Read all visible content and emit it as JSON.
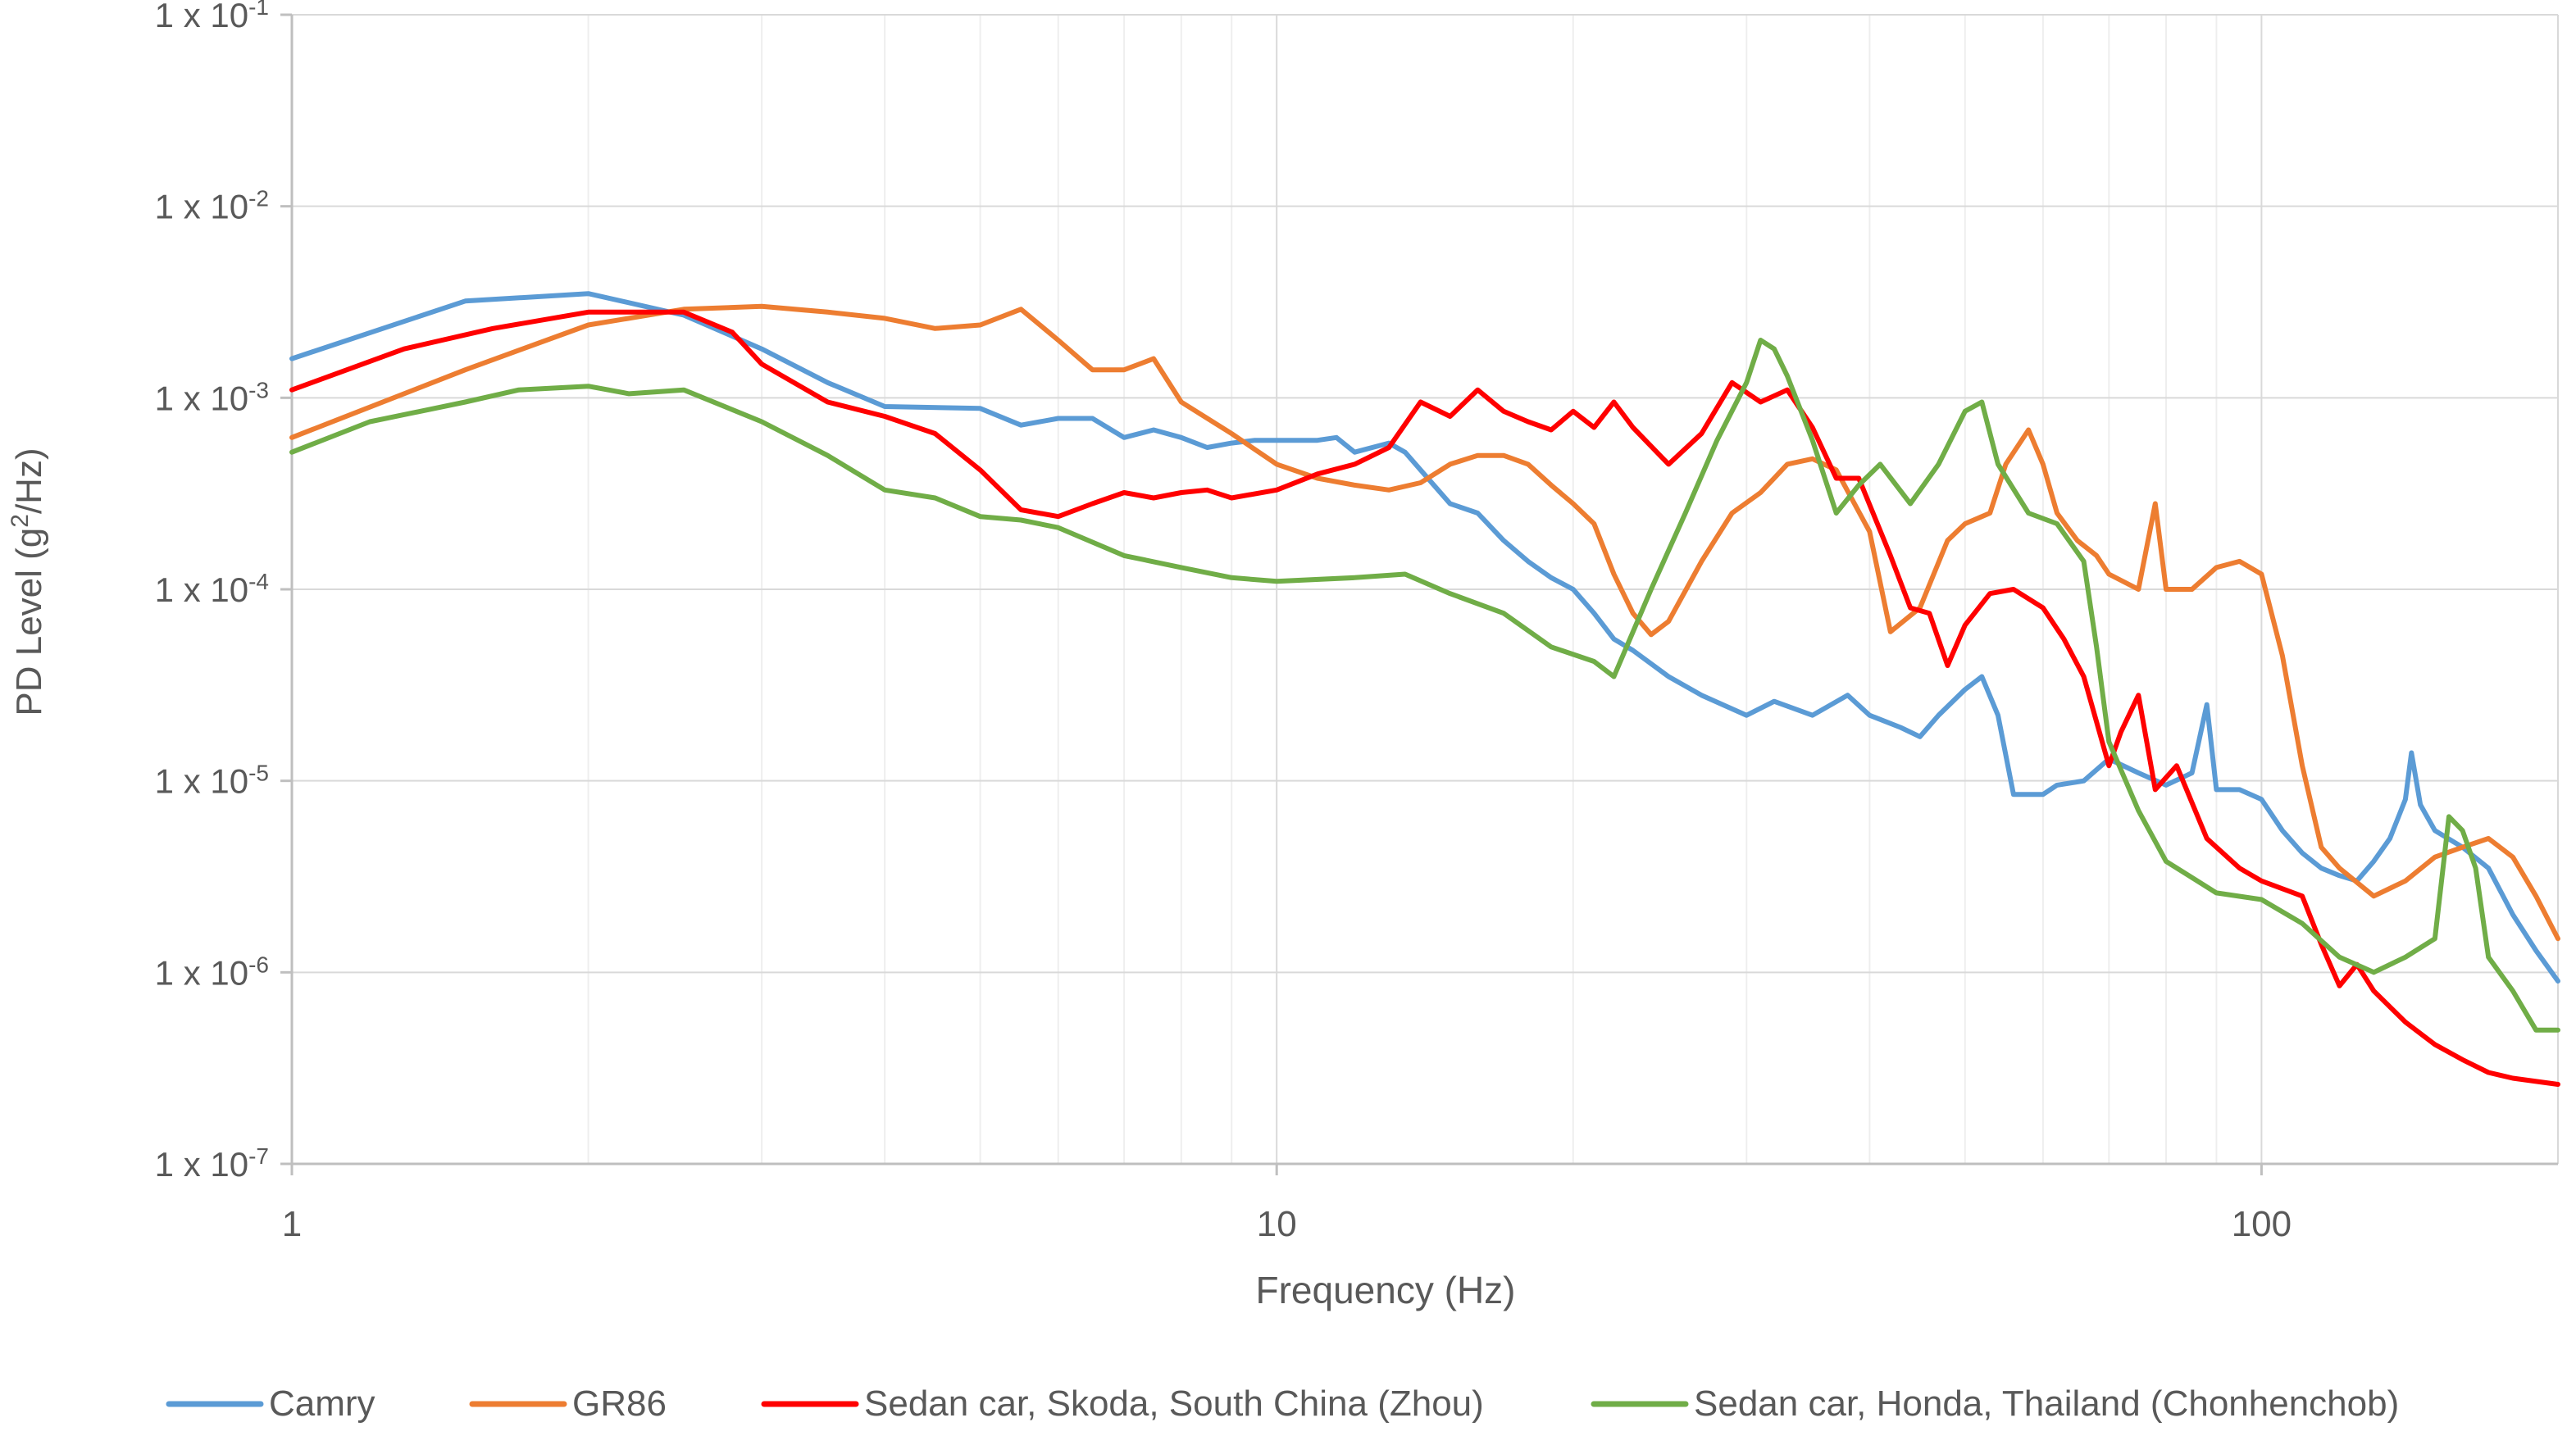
{
  "chart_data": {
    "type": "line",
    "title": "",
    "xlabel": "Frequency (Hz)",
    "ylabel": "PD Level (g²/Hz)",
    "ylabel_parts": {
      "pre": "PD Level (g",
      "sup": "2",
      "post": "/Hz)"
    },
    "x_scale": "log",
    "y_scale": "log",
    "xlim": [
      1,
      200
    ],
    "ylim": [
      1e-07,
      0.1
    ],
    "grid": "major and minor (log)",
    "legend_position": "bottom",
    "x_ticks": [
      {
        "value": 1,
        "label": "1"
      },
      {
        "value": 10,
        "label": "10"
      },
      {
        "value": 100,
        "label": "100"
      }
    ],
    "y_ticks": [
      {
        "value": 0.1,
        "base": "1 x 10",
        "exp": "-1"
      },
      {
        "value": 0.01,
        "base": "1 x 10",
        "exp": "-2"
      },
      {
        "value": 0.001,
        "base": "1 x 10",
        "exp": "-3"
      },
      {
        "value": 0.0001,
        "base": "1 x 10",
        "exp": "-4"
      },
      {
        "value": 1e-05,
        "base": "1 x 10",
        "exp": "-5"
      },
      {
        "value": 1e-06,
        "base": "1 x 10",
        "exp": "-6"
      },
      {
        "value": 1e-07,
        "base": "1 x 10",
        "exp": "-7"
      }
    ],
    "series": [
      {
        "name": "Camry",
        "color": "#5B9BD5",
        "points": [
          [
            1,
            0.0016
          ],
          [
            1.5,
            0.0032
          ],
          [
            2,
            0.0035
          ],
          [
            2.5,
            0.0027
          ],
          [
            3,
            0.0018
          ],
          [
            3.5,
            0.0012
          ],
          [
            4,
            0.0009
          ],
          [
            5,
            0.00088
          ],
          [
            5.5,
            0.00072
          ],
          [
            6,
            0.00078
          ],
          [
            6.5,
            0.00078
          ],
          [
            7,
            0.00062
          ],
          [
            7.5,
            0.00068
          ],
          [
            8,
            0.00062
          ],
          [
            8.5,
            0.00055
          ],
          [
            9,
            0.00058
          ],
          [
            9.5,
            0.0006
          ],
          [
            10,
            0.0006
          ],
          [
            11,
            0.0006
          ],
          [
            11.5,
            0.00062
          ],
          [
            12,
            0.00052
          ],
          [
            13,
            0.00058
          ],
          [
            13.5,
            0.00052
          ],
          [
            14,
            0.00042
          ],
          [
            15,
            0.00028
          ],
          [
            16,
            0.00025
          ],
          [
            17,
            0.00018
          ],
          [
            18,
            0.00014
          ],
          [
            19,
            0.000115
          ],
          [
            20,
            0.0001
          ],
          [
            21,
            7.5e-05
          ],
          [
            22,
            5.5e-05
          ],
          [
            23,
            4.8e-05
          ],
          [
            25,
            3.5e-05
          ],
          [
            27,
            2.8e-05
          ],
          [
            30,
            2.2e-05
          ],
          [
            32,
            2.6e-05
          ],
          [
            35,
            2.2e-05
          ],
          [
            38,
            2.8e-05
          ],
          [
            40,
            2.2e-05
          ],
          [
            43,
            1.9e-05
          ],
          [
            45,
            1.7e-05
          ],
          [
            47,
            2.2e-05
          ],
          [
            50,
            3e-05
          ],
          [
            52,
            3.5e-05
          ],
          [
            54,
            2.2e-05
          ],
          [
            56,
            8.5e-06
          ],
          [
            60,
            8.5e-06
          ],
          [
            62,
            9.5e-06
          ],
          [
            66,
            1e-05
          ],
          [
            70,
            1.3e-05
          ],
          [
            75,
            1.1e-05
          ],
          [
            80,
            9.5e-06
          ],
          [
            85,
            1.1e-05
          ],
          [
            88,
            2.5e-05
          ],
          [
            90,
            9e-06
          ],
          [
            95,
            9e-06
          ],
          [
            100,
            8e-06
          ],
          [
            105,
            5.5e-06
          ],
          [
            110,
            4.2e-06
          ],
          [
            115,
            3.5e-06
          ],
          [
            120,
            3.2e-06
          ],
          [
            125,
            3e-06
          ],
          [
            130,
            3.8e-06
          ],
          [
            135,
            5e-06
          ],
          [
            140,
            8e-06
          ],
          [
            142,
            1.4e-05
          ],
          [
            145,
            7.5e-06
          ],
          [
            150,
            5.5e-06
          ],
          [
            160,
            4.5e-06
          ],
          [
            170,
            3.5e-06
          ],
          [
            180,
            2e-06
          ],
          [
            190,
            1.3e-06
          ],
          [
            200,
            9e-07
          ]
        ]
      },
      {
        "name": "GR86",
        "color": "#ED7D31",
        "points": [
          [
            1,
            0.00062
          ],
          [
            1.5,
            0.0014
          ],
          [
            2,
            0.0024
          ],
          [
            2.5,
            0.0029
          ],
          [
            3,
            0.003
          ],
          [
            3.5,
            0.0028
          ],
          [
            4,
            0.0026
          ],
          [
            4.5,
            0.0023
          ],
          [
            5,
            0.0024
          ],
          [
            5.5,
            0.0029
          ],
          [
            6,
            0.002
          ],
          [
            6.5,
            0.0014
          ],
          [
            7,
            0.0014
          ],
          [
            7.5,
            0.0016
          ],
          [
            8,
            0.00095
          ],
          [
            9,
            0.00065
          ],
          [
            10,
            0.00045
          ],
          [
            11,
            0.00038
          ],
          [
            12,
            0.00035
          ],
          [
            13,
            0.00033
          ],
          [
            14,
            0.00036
          ],
          [
            15,
            0.00045
          ],
          [
            16,
            0.0005
          ],
          [
            17,
            0.0005
          ],
          [
            18,
            0.00045
          ],
          [
            19,
            0.00035
          ],
          [
            20,
            0.00028
          ],
          [
            21,
            0.00022
          ],
          [
            22,
            0.00012
          ],
          [
            23,
            7.5e-05
          ],
          [
            24,
            5.8e-05
          ],
          [
            25,
            6.8e-05
          ],
          [
            27,
            0.00014
          ],
          [
            29,
            0.00025
          ],
          [
            31,
            0.00032
          ],
          [
            33,
            0.00045
          ],
          [
            35,
            0.00048
          ],
          [
            37,
            0.00042
          ],
          [
            40,
            0.0002
          ],
          [
            42,
            6e-05
          ],
          [
            45,
            8e-05
          ],
          [
            48,
            0.00018
          ],
          [
            50,
            0.00022
          ],
          [
            53,
            0.00025
          ],
          [
            55,
            0.00045
          ],
          [
            58,
            0.00068
          ],
          [
            60,
            0.00045
          ],
          [
            62,
            0.00025
          ],
          [
            65,
            0.00018
          ],
          [
            68,
            0.00015
          ],
          [
            70,
            0.00012
          ],
          [
            75,
            0.0001
          ],
          [
            78,
            0.00028
          ],
          [
            80,
            0.0001
          ],
          [
            85,
            0.0001
          ],
          [
            90,
            0.00013
          ],
          [
            95,
            0.00014
          ],
          [
            100,
            0.00012
          ],
          [
            105,
            4.5e-05
          ],
          [
            110,
            1.2e-05
          ],
          [
            115,
            4.5e-06
          ],
          [
            120,
            3.5e-06
          ],
          [
            130,
            2.5e-06
          ],
          [
            140,
            3e-06
          ],
          [
            150,
            4e-06
          ],
          [
            160,
            4.5e-06
          ],
          [
            170,
            5e-06
          ],
          [
            180,
            4e-06
          ],
          [
            190,
            2.5e-06
          ],
          [
            200,
            1.5e-06
          ]
        ]
      },
      {
        "name": "Sedan car, Skoda, South China (Zhou)",
        "color": "#FF0000",
        "points": [
          [
            1,
            0.0011
          ],
          [
            1.3,
            0.0018
          ],
          [
            1.6,
            0.0023
          ],
          [
            2,
            0.0028
          ],
          [
            2.5,
            0.0028
          ],
          [
            2.8,
            0.0022
          ],
          [
            3,
            0.0015
          ],
          [
            3.5,
            0.00095
          ],
          [
            4,
            0.0008
          ],
          [
            4.5,
            0.00065
          ],
          [
            5,
            0.00042
          ],
          [
            5.5,
            0.00026
          ],
          [
            6,
            0.00024
          ],
          [
            6.5,
            0.00028
          ],
          [
            7,
            0.00032
          ],
          [
            7.5,
            0.0003
          ],
          [
            8,
            0.00032
          ],
          [
            8.5,
            0.00033
          ],
          [
            9,
            0.0003
          ],
          [
            10,
            0.00033
          ],
          [
            11,
            0.0004
          ],
          [
            12,
            0.00045
          ],
          [
            13,
            0.00055
          ],
          [
            14,
            0.00095
          ],
          [
            15,
            0.0008
          ],
          [
            16,
            0.0011
          ],
          [
            17,
            0.00085
          ],
          [
            18,
            0.00075
          ],
          [
            19,
            0.00068
          ],
          [
            20,
            0.00085
          ],
          [
            21,
            0.0007
          ],
          [
            22,
            0.00095
          ],
          [
            23,
            0.0007
          ],
          [
            25,
            0.00045
          ],
          [
            27,
            0.00065
          ],
          [
            29,
            0.0012
          ],
          [
            31,
            0.00095
          ],
          [
            33,
            0.0011
          ],
          [
            35,
            0.0007
          ],
          [
            37,
            0.00038
          ],
          [
            39,
            0.00038
          ],
          [
            42,
            0.00015
          ],
          [
            44,
            8e-05
          ],
          [
            46,
            7.5e-05
          ],
          [
            48,
            4e-05
          ],
          [
            50,
            6.5e-05
          ],
          [
            53,
            9.5e-05
          ],
          [
            56,
            0.0001
          ],
          [
            60,
            8e-05
          ],
          [
            63,
            5.5e-05
          ],
          [
            66,
            3.5e-05
          ],
          [
            70,
            1.2e-05
          ],
          [
            72,
            1.8e-05
          ],
          [
            75,
            2.8e-05
          ],
          [
            78,
            9e-06
          ],
          [
            82,
            1.2e-05
          ],
          [
            88,
            5e-06
          ],
          [
            95,
            3.5e-06
          ],
          [
            100,
            3e-06
          ],
          [
            110,
            2.5e-06
          ],
          [
            115,
            1.4e-06
          ],
          [
            120,
            8.5e-07
          ],
          [
            125,
            1.1e-06
          ],
          [
            130,
            8e-07
          ],
          [
            140,
            5.5e-07
          ],
          [
            150,
            4.2e-07
          ],
          [
            160,
            3.5e-07
          ],
          [
            170,
            3e-07
          ],
          [
            180,
            2.8e-07
          ],
          [
            200,
            2.6e-07
          ]
        ]
      },
      {
        "name": "Sedan car, Honda, Thailand (Chonhenchob)",
        "color": "#70AD47",
        "points": [
          [
            1,
            0.00052
          ],
          [
            1.2,
            0.00075
          ],
          [
            1.5,
            0.00095
          ],
          [
            1.7,
            0.0011
          ],
          [
            2,
            0.00115
          ],
          [
            2.2,
            0.00105
          ],
          [
            2.5,
            0.0011
          ],
          [
            3,
            0.00075
          ],
          [
            3.5,
            0.0005
          ],
          [
            4,
            0.00033
          ],
          [
            4.5,
            0.0003
          ],
          [
            5,
            0.00024
          ],
          [
            5.5,
            0.00023
          ],
          [
            6,
            0.00021
          ],
          [
            7,
            0.00015
          ],
          [
            8,
            0.00013
          ],
          [
            9,
            0.000115
          ],
          [
            10,
            0.00011
          ],
          [
            12,
            0.000115
          ],
          [
            13.5,
            0.00012
          ],
          [
            15,
            9.5e-05
          ],
          [
            17,
            7.5e-05
          ],
          [
            19,
            5e-05
          ],
          [
            21,
            4.2e-05
          ],
          [
            22,
            3.5e-05
          ],
          [
            24,
            0.0001
          ],
          [
            26,
            0.00025
          ],
          [
            28,
            0.0006
          ],
          [
            30,
            0.0012
          ],
          [
            31,
            0.002
          ],
          [
            32,
            0.0018
          ],
          [
            33,
            0.0013
          ],
          [
            35,
            0.0006
          ],
          [
            37,
            0.00025
          ],
          [
            39,
            0.00035
          ],
          [
            41,
            0.00045
          ],
          [
            44,
            0.00028
          ],
          [
            47,
            0.00045
          ],
          [
            50,
            0.00085
          ],
          [
            52,
            0.00095
          ],
          [
            54,
            0.00045
          ],
          [
            58,
            0.00025
          ],
          [
            62,
            0.00022
          ],
          [
            66,
            0.00014
          ],
          [
            68,
            5e-05
          ],
          [
            70,
            1.6e-05
          ],
          [
            75,
            7e-06
          ],
          [
            80,
            3.8e-06
          ],
          [
            90,
            2.6e-06
          ],
          [
            100,
            2.4e-06
          ],
          [
            110,
            1.8e-06
          ],
          [
            120,
            1.2e-06
          ],
          [
            130,
            1e-06
          ],
          [
            140,
            1.2e-06
          ],
          [
            150,
            1.5e-06
          ],
          [
            155,
            6.5e-06
          ],
          [
            160,
            5.5e-06
          ],
          [
            165,
            3.5e-06
          ],
          [
            170,
            1.2e-06
          ],
          [
            180,
            8e-07
          ],
          [
            190,
            5e-07
          ],
          [
            200,
            5e-07
          ]
        ]
      }
    ]
  }
}
